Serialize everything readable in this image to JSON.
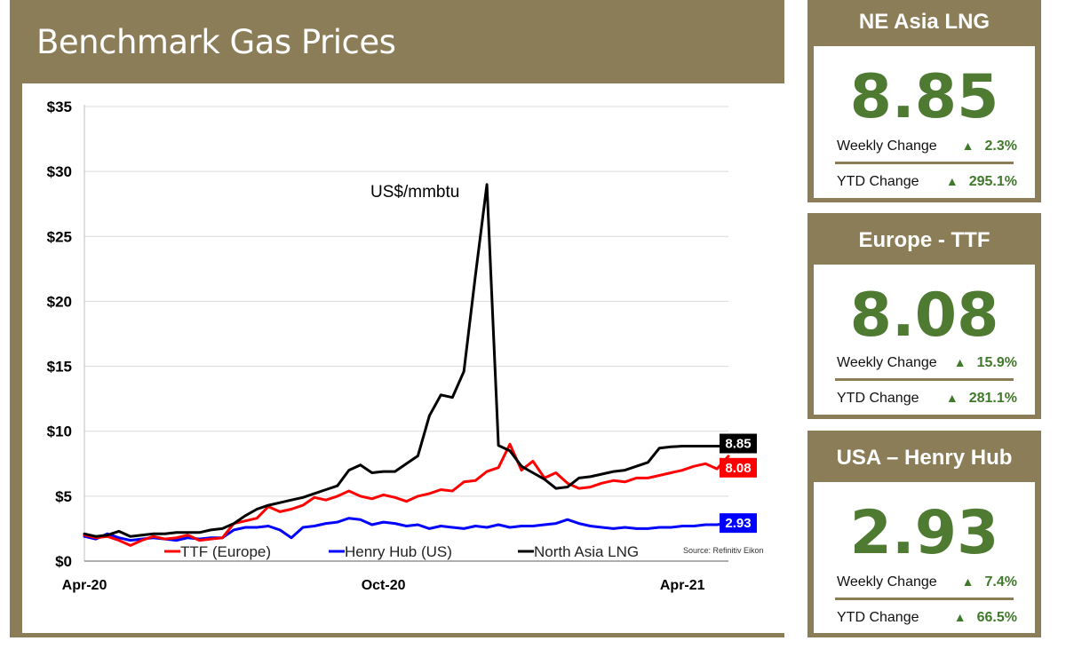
{
  "page_title": "Benchmark Gas Prices",
  "colors": {
    "panel": "#8b7d57",
    "ttf": "#ff0000",
    "henry_hub": "#0000ff",
    "lng": "#000000",
    "up": "#3f7a2a",
    "value": "#4e7a32"
  },
  "chart_data": {
    "type": "line",
    "annotation": "US$/mmbtu",
    "source": "Source: Refinitiv Eikon",
    "xlabel": "",
    "ylabel": "",
    "ylim": [
      0,
      35
    ],
    "y_ticks": [
      "$0",
      "$5",
      "$10",
      "$15",
      "$20",
      "$25",
      "$30",
      "$35"
    ],
    "x_ticks": [
      {
        "label": "Apr-20",
        "x": 0
      },
      {
        "label": "Oct-20",
        "x": 26
      },
      {
        "label": "Apr-21",
        "x": 52
      }
    ],
    "xlim": [
      0,
      56
    ],
    "grid": true,
    "legend_placement": "bottom",
    "series": [
      {
        "name": "TTF (Europe)",
        "color": "#ff0000",
        "end_label": "8.08",
        "x": [
          0,
          1,
          2,
          3,
          4,
          5,
          6,
          7,
          8,
          9,
          10,
          11,
          12,
          13,
          14,
          15,
          16,
          17,
          18,
          19,
          20,
          21,
          22,
          23,
          24,
          25,
          26,
          27,
          28,
          29,
          30,
          31,
          32,
          33,
          34,
          35,
          36,
          37,
          38,
          39,
          40,
          41,
          42,
          43,
          44,
          45,
          46,
          47,
          48,
          49,
          50,
          51,
          52,
          53,
          54,
          55,
          56
        ],
        "values": [
          2.0,
          1.8,
          1.9,
          1.6,
          1.2,
          1.6,
          1.9,
          1.7,
          1.8,
          2.0,
          1.6,
          1.7,
          1.8,
          2.9,
          3.1,
          3.3,
          4.2,
          3.8,
          4.0,
          4.3,
          4.9,
          4.7,
          5.0,
          5.4,
          5.0,
          4.8,
          5.1,
          4.9,
          4.6,
          5.0,
          5.2,
          5.5,
          5.4,
          6.1,
          6.2,
          6.9,
          7.2,
          9.0,
          7.0,
          7.7,
          6.4,
          6.8,
          6.0,
          5.6,
          5.7,
          6.0,
          6.2,
          6.1,
          6.4,
          6.4,
          6.6,
          6.8,
          7.0,
          7.3,
          7.5,
          7.1,
          8.08
        ]
      },
      {
        "name": "Henry Hub (US)",
        "color": "#0000ff",
        "end_label": "2.93",
        "x": [
          0,
          1,
          2,
          3,
          4,
          5,
          6,
          7,
          8,
          9,
          10,
          11,
          12,
          13,
          14,
          15,
          16,
          17,
          18,
          19,
          20,
          21,
          22,
          23,
          24,
          25,
          26,
          27,
          28,
          29,
          30,
          31,
          32,
          33,
          34,
          35,
          36,
          37,
          38,
          39,
          40,
          41,
          42,
          43,
          44,
          45,
          46,
          47,
          48,
          49,
          50,
          51,
          52,
          53,
          54,
          55,
          56
        ],
        "values": [
          1.9,
          1.7,
          2.1,
          1.8,
          1.6,
          1.7,
          1.8,
          1.7,
          1.6,
          1.8,
          1.7,
          1.8,
          1.8,
          2.4,
          2.6,
          2.6,
          2.7,
          2.4,
          1.8,
          2.6,
          2.7,
          2.9,
          3.0,
          3.3,
          3.2,
          2.8,
          3.0,
          2.9,
          2.7,
          2.8,
          2.5,
          2.7,
          2.6,
          2.5,
          2.7,
          2.6,
          2.8,
          2.6,
          2.7,
          2.7,
          2.8,
          2.9,
          3.2,
          2.9,
          2.7,
          2.6,
          2.5,
          2.6,
          2.5,
          2.5,
          2.6,
          2.6,
          2.7,
          2.7,
          2.8,
          2.8,
          2.93
        ]
      },
      {
        "name": "North Asia LNG",
        "color": "#000000",
        "end_label": "8.85",
        "x": [
          0,
          1,
          2,
          3,
          4,
          5,
          6,
          7,
          8,
          9,
          10,
          11,
          12,
          13,
          14,
          15,
          16,
          17,
          18,
          19,
          20,
          21,
          22,
          23,
          24,
          25,
          26,
          27,
          28,
          29,
          30,
          31,
          32,
          33,
          34,
          35,
          36,
          37,
          38,
          39,
          40,
          41,
          42,
          43,
          44,
          45,
          46,
          47,
          48,
          49,
          50,
          51,
          52,
          53,
          54,
          55,
          56
        ],
        "values": [
          2.1,
          1.9,
          2.0,
          2.3,
          1.9,
          2.0,
          2.1,
          2.1,
          2.2,
          2.2,
          2.2,
          2.4,
          2.5,
          2.9,
          3.5,
          4.0,
          4.3,
          4.5,
          4.7,
          4.9,
          5.2,
          5.5,
          5.8,
          7.0,
          7.4,
          6.8,
          6.9,
          6.9,
          7.5,
          8.1,
          11.2,
          12.8,
          12.6,
          14.6,
          22.0,
          29.0,
          8.9,
          8.5,
          7.3,
          6.8,
          6.3,
          5.6,
          5.7,
          6.4,
          6.5,
          6.7,
          6.9,
          7.0,
          7.3,
          7.6,
          8.7,
          8.8,
          8.85,
          8.85,
          8.85,
          8.85,
          8.85
        ]
      }
    ]
  },
  "cards": [
    {
      "title": "NE Asia LNG",
      "value": "8.85",
      "weekly_label": "Weekly Change",
      "weekly_arrow": "▲",
      "weekly_value": "2.3%",
      "ytd_label": "YTD Change",
      "ytd_arrow": "▲",
      "ytd_value": "295.1%"
    },
    {
      "title": "Europe - TTF",
      "value": "8.08",
      "weekly_label": "Weekly Change",
      "weekly_arrow": "▲",
      "weekly_value": "15.9%",
      "ytd_label": "YTD Change",
      "ytd_arrow": "▲",
      "ytd_value": "281.1%"
    },
    {
      "title": "USA – Henry Hub",
      "value": "2.93",
      "weekly_label": "Weekly Change",
      "weekly_arrow": "▲",
      "weekly_value": "7.4%",
      "ytd_label": "YTD Change",
      "ytd_arrow": "▲",
      "ytd_value": "66.5%"
    }
  ]
}
